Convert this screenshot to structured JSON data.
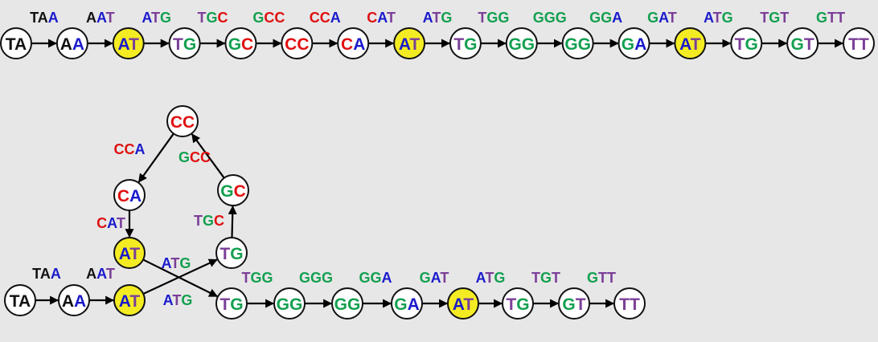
{
  "colors": {
    "A": "#1a1acc",
    "T": "#7b3f98",
    "C": "#e01010",
    "G": "#13a050",
    "text_default": "#111111",
    "node_fill": "#ffffff",
    "node_highlight": "#f4ec23",
    "edge": "#000000"
  },
  "top_path": {
    "nodes": [
      "TA",
      "AA",
      "AT",
      "TG",
      "GC",
      "CC",
      "CA",
      "AT",
      "TG",
      "GG",
      "GG",
      "GA",
      "AT",
      "TG",
      "GT",
      "TT"
    ],
    "highlighted": [
      2,
      7,
      12
    ],
    "edge_labels": [
      "TAA",
      "AAT",
      "ATG",
      "TGC",
      "GCC",
      "CCA",
      "CAT",
      "ATG",
      "TGG",
      "GGG",
      "GGA",
      "GAT",
      "ATG",
      "TGT",
      "GTT"
    ]
  },
  "bottom_graph": {
    "nodes": [
      {
        "id": "ta",
        "label": "TA"
      },
      {
        "id": "aa",
        "label": "AA"
      },
      {
        "id": "at1",
        "label": "AT",
        "highlight": true
      },
      {
        "id": "tg_loop",
        "label": "TG"
      },
      {
        "id": "gc",
        "label": "GC"
      },
      {
        "id": "cc",
        "label": "CC"
      },
      {
        "id": "ca",
        "label": "CA"
      },
      {
        "id": "at2",
        "label": "AT",
        "highlight": true
      },
      {
        "id": "tg1",
        "label": "TG"
      },
      {
        "id": "gg1",
        "label": "GG"
      },
      {
        "id": "gg2",
        "label": "GG"
      },
      {
        "id": "ga",
        "label": "GA"
      },
      {
        "id": "at3",
        "label": "AT",
        "highlight": true
      },
      {
        "id": "tg2",
        "label": "TG"
      },
      {
        "id": "gt",
        "label": "GT"
      },
      {
        "id": "tt",
        "label": "TT"
      }
    ],
    "edges": [
      {
        "from": "ta",
        "to": "aa",
        "label": "TAA"
      },
      {
        "from": "aa",
        "to": "at1",
        "label": "AAT"
      },
      {
        "from": "at1",
        "to": "tg_loop",
        "label": "ATG"
      },
      {
        "from": "tg_loop",
        "to": "gc",
        "label": "TGC"
      },
      {
        "from": "gc",
        "to": "cc",
        "label": "GCC"
      },
      {
        "from": "cc",
        "to": "ca",
        "label": "CCA"
      },
      {
        "from": "ca",
        "to": "at2",
        "label": "CAT"
      },
      {
        "from": "at2",
        "to": "tg1",
        "label": "ATG"
      },
      {
        "from": "tg1",
        "to": "gg1",
        "label": "TGG"
      },
      {
        "from": "gg1",
        "to": "gg2",
        "label": "GGG"
      },
      {
        "from": "gg2",
        "to": "ga",
        "label": "GGA"
      },
      {
        "from": "ga",
        "to": "at3",
        "label": "GAT"
      },
      {
        "from": "at3",
        "to": "tg2",
        "label": "ATG"
      },
      {
        "from": "tg2",
        "to": "gt",
        "label": "TGT"
      },
      {
        "from": "gt",
        "to": "tt",
        "label": "GTT"
      }
    ]
  }
}
